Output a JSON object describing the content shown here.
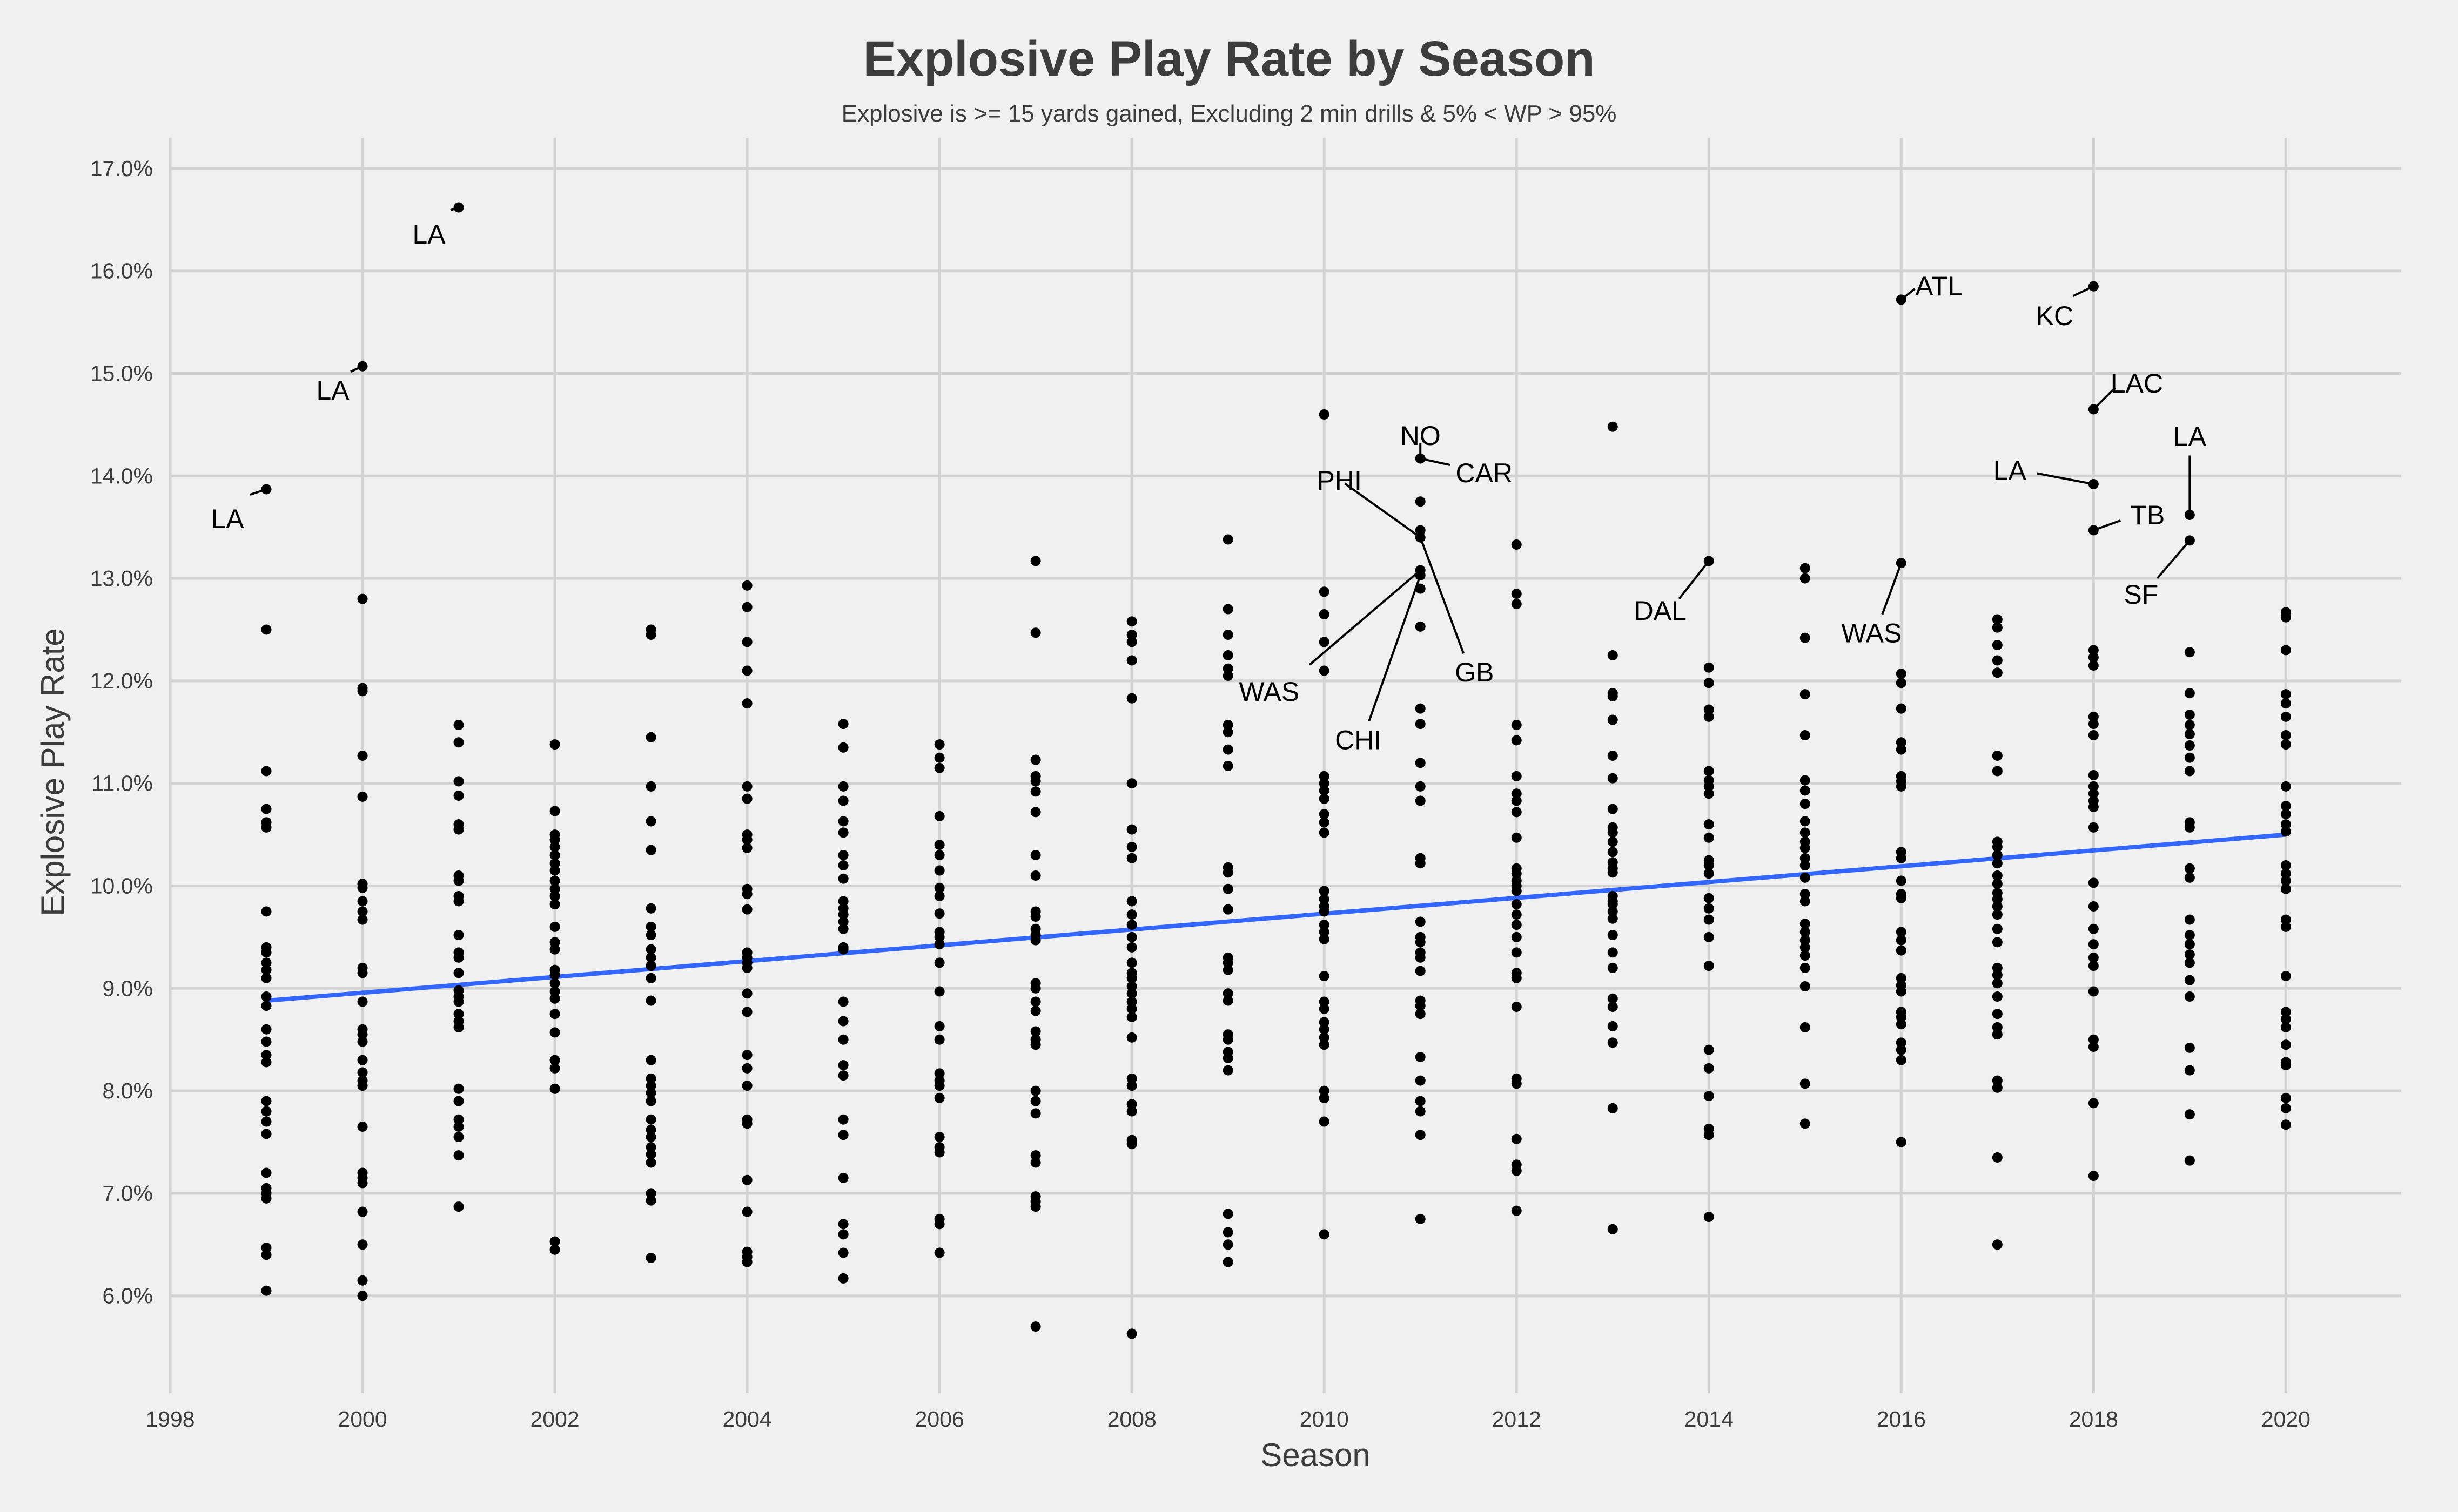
{
  "chart_data": {
    "type": "scatter",
    "title": "Explosive Play Rate by Season",
    "subtitle": "Explosive is >= 15 yards gained, Excluding 2 min drills & 5% < WP > 95%",
    "xlabel": "Season",
    "ylabel": "Explosive Play Rate",
    "xlim": [
      1998,
      2021.2
    ],
    "ylim": [
      5.05,
      17.3
    ],
    "x_ticks": [
      1998,
      2000,
      2002,
      2004,
      2006,
      2008,
      2010,
      2012,
      2014,
      2016,
      2018,
      2020
    ],
    "y_ticks": [
      "6.0%",
      "7.0%",
      "8.0%",
      "9.0%",
      "10.0%",
      "11.0%",
      "12.0%",
      "13.0%",
      "14.0%",
      "15.0%",
      "16.0%",
      "17.0%"
    ],
    "y_tick_values": [
      6,
      7,
      8,
      9,
      10,
      11,
      12,
      13,
      14,
      15,
      16,
      17
    ],
    "grid": true,
    "colors": {
      "points": "#000000",
      "trend": "#3366ff",
      "background": "#f0f0f0",
      "grid": "#d2d2d2"
    },
    "trend_line": {
      "x": [
        1999,
        2020
      ],
      "y": [
        8.88,
        10.5
      ]
    },
    "points": {
      "1999": [
        13.87,
        12.5,
        11.12,
        10.75,
        10.62,
        10.57,
        9.75,
        9.4,
        9.35,
        9.25,
        9.18,
        9.1,
        8.92,
        8.83,
        8.6,
        8.48,
        8.35,
        8.28,
        7.9,
        7.8,
        7.7,
        7.58,
        7.2,
        7.05,
        7.0,
        6.95,
        6.47,
        6.4,
        6.05
      ],
      "2000": [
        15.07,
        12.8,
        11.93,
        11.9,
        11.27,
        10.87,
        10.02,
        9.98,
        9.85,
        9.75,
        9.67,
        9.2,
        9.15,
        8.87,
        8.6,
        8.55,
        8.48,
        8.3,
        8.18,
        8.1,
        8.05,
        7.65,
        7.2,
        7.15,
        7.1,
        6.82,
        6.5,
        6.15,
        6.0
      ],
      "2001": [
        16.62,
        11.57,
        11.4,
        11.02,
        10.88,
        10.6,
        10.55,
        10.1,
        10.05,
        9.9,
        9.85,
        9.52,
        9.35,
        9.3,
        9.15,
        8.98,
        8.92,
        8.87,
        8.75,
        8.68,
        8.62,
        8.02,
        7.9,
        7.72,
        7.65,
        7.55,
        7.37,
        6.87
      ],
      "2002": [
        11.38,
        10.73,
        10.5,
        10.45,
        10.38,
        10.3,
        10.22,
        10.15,
        10.05,
        9.97,
        9.9,
        9.82,
        9.6,
        9.45,
        9.38,
        9.18,
        9.13,
        9.05,
        8.97,
        8.9,
        8.75,
        8.57,
        8.3,
        8.22,
        8.02,
        6.53,
        6.45
      ],
      "2003": [
        12.5,
        12.45,
        11.45,
        10.97,
        10.63,
        10.35,
        9.78,
        9.6,
        9.52,
        9.38,
        9.3,
        9.22,
        9.1,
        8.88,
        8.3,
        8.12,
        8.05,
        7.98,
        7.9,
        7.72,
        7.62,
        7.55,
        7.45,
        7.38,
        7.3,
        7.0,
        6.93,
        6.37
      ],
      "2004": [
        12.93,
        12.72,
        12.38,
        12.1,
        11.78,
        10.97,
        10.85,
        10.5,
        10.45,
        10.37,
        9.97,
        9.92,
        9.77,
        9.35,
        9.3,
        9.25,
        9.2,
        8.95,
        8.77,
        8.35,
        8.22,
        8.05,
        7.72,
        7.68,
        7.13,
        6.82,
        6.43,
        6.38,
        6.33
      ],
      "2005": [
        11.58,
        11.35,
        10.97,
        10.83,
        10.63,
        10.52,
        10.3,
        10.2,
        10.07,
        9.85,
        9.78,
        9.72,
        9.65,
        9.58,
        9.4,
        9.38,
        8.87,
        8.68,
        8.5,
        8.25,
        8.15,
        7.72,
        7.57,
        7.15,
        6.7,
        6.6,
        6.42,
        6.17
      ],
      "2006": [
        11.38,
        11.25,
        11.15,
        10.68,
        10.4,
        10.3,
        10.15,
        9.98,
        9.9,
        9.73,
        9.55,
        9.5,
        9.43,
        9.25,
        8.97,
        8.63,
        8.5,
        8.17,
        8.1,
        8.05,
        7.93,
        7.55,
        7.45,
        7.4,
        6.75,
        6.7,
        6.42
      ],
      "2007": [
        13.17,
        12.47,
        11.23,
        11.07,
        11.02,
        10.92,
        10.72,
        10.3,
        10.1,
        9.75,
        9.7,
        9.58,
        9.52,
        9.47,
        9.05,
        9.0,
        8.87,
        8.78,
        8.58,
        8.5,
        8.45,
        8.0,
        7.9,
        7.78,
        7.37,
        7.3,
        6.97,
        6.92,
        6.87,
        5.7
      ],
      "2008": [
        12.58,
        12.45,
        12.38,
        12.2,
        11.83,
        11.0,
        10.55,
        10.38,
        10.27,
        9.85,
        9.72,
        9.62,
        9.5,
        9.4,
        9.25,
        9.15,
        9.1,
        9.02,
        8.95,
        8.87,
        8.8,
        8.72,
        8.52,
        8.12,
        8.05,
        7.87,
        7.8,
        7.52,
        7.48,
        5.63
      ],
      "2009": [
        13.38,
        12.7,
        12.45,
        12.25,
        12.12,
        12.05,
        11.57,
        11.5,
        11.33,
        11.17,
        10.18,
        10.13,
        9.97,
        9.77,
        9.3,
        9.25,
        9.18,
        8.95,
        8.88,
        8.55,
        8.5,
        8.38,
        8.32,
        8.2,
        6.8,
        6.62,
        6.5,
        6.33
      ],
      "2010": [
        14.6,
        12.87,
        12.65,
        12.38,
        12.1,
        11.07,
        11.0,
        10.93,
        10.85,
        10.7,
        10.62,
        10.52,
        9.95,
        9.87,
        9.8,
        9.75,
        9.62,
        9.55,
        9.48,
        9.12,
        8.87,
        8.8,
        8.67,
        8.6,
        8.52,
        8.45,
        8.0,
        7.93,
        7.7,
        6.6
      ],
      "2011": [
        14.17,
        13.75,
        13.47,
        13.4,
        13.08,
        13.03,
        12.9,
        12.53,
        11.73,
        11.58,
        11.2,
        10.97,
        10.83,
        10.27,
        10.22,
        9.65,
        9.5,
        9.45,
        9.35,
        9.3,
        9.17,
        8.88,
        8.83,
        8.75,
        8.33,
        8.1,
        7.9,
        7.8,
        7.57,
        6.75
      ],
      "2012": [
        13.33,
        12.85,
        12.75,
        11.57,
        11.42,
        11.07,
        10.9,
        10.83,
        10.72,
        10.47,
        10.17,
        10.12,
        10.05,
        10.0,
        9.95,
        9.82,
        9.72,
        9.62,
        9.5,
        9.35,
        9.15,
        9.1,
        8.82,
        8.12,
        8.07,
        7.53,
        7.28,
        7.22,
        6.83
      ],
      "2013": [
        14.48,
        12.25,
        11.88,
        11.85,
        11.62,
        11.27,
        11.05,
        10.75,
        10.57,
        10.52,
        10.43,
        10.33,
        10.23,
        10.17,
        10.13,
        9.9,
        9.85,
        9.82,
        9.75,
        9.68,
        9.52,
        9.35,
        9.2,
        8.9,
        8.82,
        8.63,
        8.47,
        7.83,
        6.65
      ],
      "2014": [
        13.17,
        12.13,
        11.98,
        11.72,
        11.65,
        11.12,
        11.03,
        10.97,
        10.9,
        10.6,
        10.47,
        10.25,
        10.2,
        10.12,
        9.88,
        9.78,
        9.67,
        9.5,
        9.22,
        8.4,
        8.22,
        7.95,
        7.63,
        7.57,
        6.77
      ],
      "2015": [
        13.1,
        13.0,
        12.42,
        11.87,
        11.47,
        11.03,
        10.93,
        10.8,
        10.63,
        10.52,
        10.43,
        10.37,
        10.27,
        10.2,
        10.08,
        9.92,
        9.85,
        9.63,
        9.55,
        9.47,
        9.4,
        9.32,
        9.2,
        9.02,
        8.62,
        8.07,
        7.68
      ],
      "2016": [
        15.72,
        13.15,
        12.07,
        11.98,
        11.73,
        11.4,
        11.33,
        11.07,
        11.02,
        10.97,
        10.33,
        10.27,
        10.05,
        9.92,
        9.88,
        9.55,
        9.47,
        9.37,
        9.1,
        9.03,
        8.97,
        8.77,
        8.72,
        8.65,
        8.47,
        8.4,
        8.3,
        7.5
      ],
      "2017": [
        12.6,
        12.52,
        12.35,
        12.2,
        12.08,
        11.27,
        11.12,
        10.43,
        10.38,
        10.3,
        10.22,
        10.1,
        10.02,
        9.93,
        9.87,
        9.8,
        9.72,
        9.58,
        9.45,
        9.2,
        9.13,
        9.05,
        8.92,
        8.75,
        8.62,
        8.55,
        8.1,
        8.03,
        7.35,
        6.5
      ],
      "2018": [
        15.85,
        14.65,
        13.92,
        13.47,
        12.3,
        12.23,
        12.15,
        11.65,
        11.58,
        11.47,
        11.08,
        10.97,
        10.9,
        10.83,
        10.77,
        10.57,
        10.03,
        9.8,
        9.58,
        9.43,
        9.3,
        9.22,
        8.97,
        8.5,
        8.43,
        7.88,
        7.17
      ],
      "2019": [
        13.62,
        13.37,
        12.28,
        11.88,
        11.67,
        11.57,
        11.48,
        11.37,
        11.25,
        11.12,
        10.62,
        10.57,
        10.17,
        10.08,
        9.67,
        9.52,
        9.43,
        9.33,
        9.25,
        9.08,
        8.92,
        8.42,
        8.2,
        7.77,
        7.32
      ],
      "2020": [
        12.67,
        12.62,
        12.3,
        11.87,
        11.78,
        11.65,
        11.47,
        11.38,
        10.97,
        10.78,
        10.7,
        10.6,
        10.53,
        10.2,
        10.12,
        10.05,
        9.97,
        9.67,
        9.6,
        9.12,
        8.77,
        8.7,
        8.62,
        8.45,
        8.28,
        8.25,
        7.93,
        7.83,
        7.67
      ]
    },
    "annotations": [
      {
        "text": "LA",
        "x": 1999,
        "y": 13.87
      },
      {
        "text": "LA",
        "x": 2000,
        "y": 15.07
      },
      {
        "text": "LA",
        "x": 2001,
        "y": 16.62
      },
      {
        "text": "NO",
        "x": 2011,
        "y": 14.17
      },
      {
        "text": "CAR",
        "x": 2011,
        "y": 14.17
      },
      {
        "text": "PHI",
        "x": 2011,
        "y": 13.4
      },
      {
        "text": "WAS",
        "x": 2011,
        "y": 13.08
      },
      {
        "text": "CHI",
        "x": 2011,
        "y": 13.03
      },
      {
        "text": "GB",
        "x": 2011,
        "y": 13.4
      },
      {
        "text": "DAL",
        "x": 2014,
        "y": 13.17
      },
      {
        "text": "ATL",
        "x": 2016,
        "y": 15.72
      },
      {
        "text": "WAS",
        "x": 2016,
        "y": 13.15
      },
      {
        "text": "KC",
        "x": 2018,
        "y": 15.85
      },
      {
        "text": "LAC",
        "x": 2018,
        "y": 14.65
      },
      {
        "text": "LA",
        "x": 2018,
        "y": 13.92
      },
      {
        "text": "TB",
        "x": 2018,
        "y": 13.47
      },
      {
        "text": "LA",
        "x": 2019,
        "y": 13.62
      },
      {
        "text": "SF",
        "x": 2019,
        "y": 13.37
      }
    ]
  }
}
